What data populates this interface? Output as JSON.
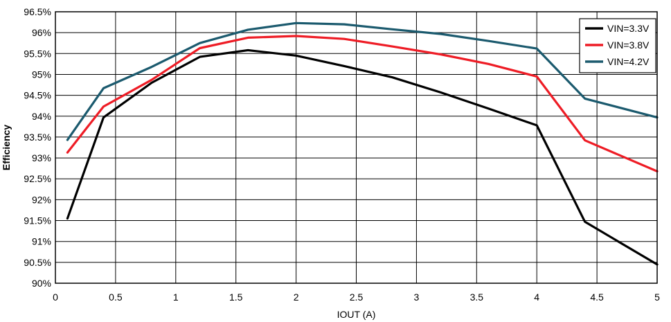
{
  "chart_data": {
    "type": "line",
    "title": "",
    "xlabel": "IOUT (A)",
    "ylabel": "Efficiency",
    "xlim": [
      0,
      5
    ],
    "ylim": [
      90,
      96.5
    ],
    "grid": true,
    "legend_position": "top-right",
    "x_ticks": [
      "0",
      "0.5",
      "1",
      "1.5",
      "2",
      "2.5",
      "3",
      "3.5",
      "4",
      "4.5",
      "5"
    ],
    "y_ticks": [
      "90%",
      "90.5%",
      "91%",
      "91.5%",
      "92%",
      "92.5%",
      "93%",
      "93.5%",
      "94%",
      "94.5%",
      "95%",
      "95.5%",
      "96%",
      "96.5%"
    ],
    "series": [
      {
        "name": "VIN=3.3V",
        "color": "#000000",
        "x": [
          0.1,
          0.4,
          0.8,
          1.2,
          1.6,
          2.0,
          2.4,
          2.8,
          3.2,
          3.6,
          4.0,
          4.4,
          5.0
        ],
        "y": [
          91.55,
          93.97,
          94.8,
          95.42,
          95.58,
          95.45,
          95.2,
          94.93,
          94.57,
          94.18,
          93.78,
          91.47,
          90.45
        ]
      },
      {
        "name": "VIN=3.8V",
        "color": "#ee1c25",
        "x": [
          0.1,
          0.4,
          0.8,
          1.2,
          1.6,
          2.0,
          2.4,
          2.8,
          3.2,
          3.6,
          4.0,
          4.4,
          5.0
        ],
        "y": [
          93.13,
          94.23,
          94.87,
          95.63,
          95.88,
          95.92,
          95.85,
          95.67,
          95.48,
          95.25,
          94.95,
          93.42,
          92.68
        ]
      },
      {
        "name": "VIN=4.2V",
        "color": "#1b5a6e",
        "x": [
          0.1,
          0.4,
          0.8,
          1.2,
          1.6,
          2.0,
          2.4,
          2.8,
          3.2,
          3.6,
          4.0,
          4.4,
          5.0
        ],
        "y": [
          93.43,
          94.67,
          95.18,
          95.75,
          96.07,
          96.23,
          96.2,
          96.08,
          95.97,
          95.8,
          95.62,
          94.42,
          93.97
        ]
      }
    ]
  }
}
